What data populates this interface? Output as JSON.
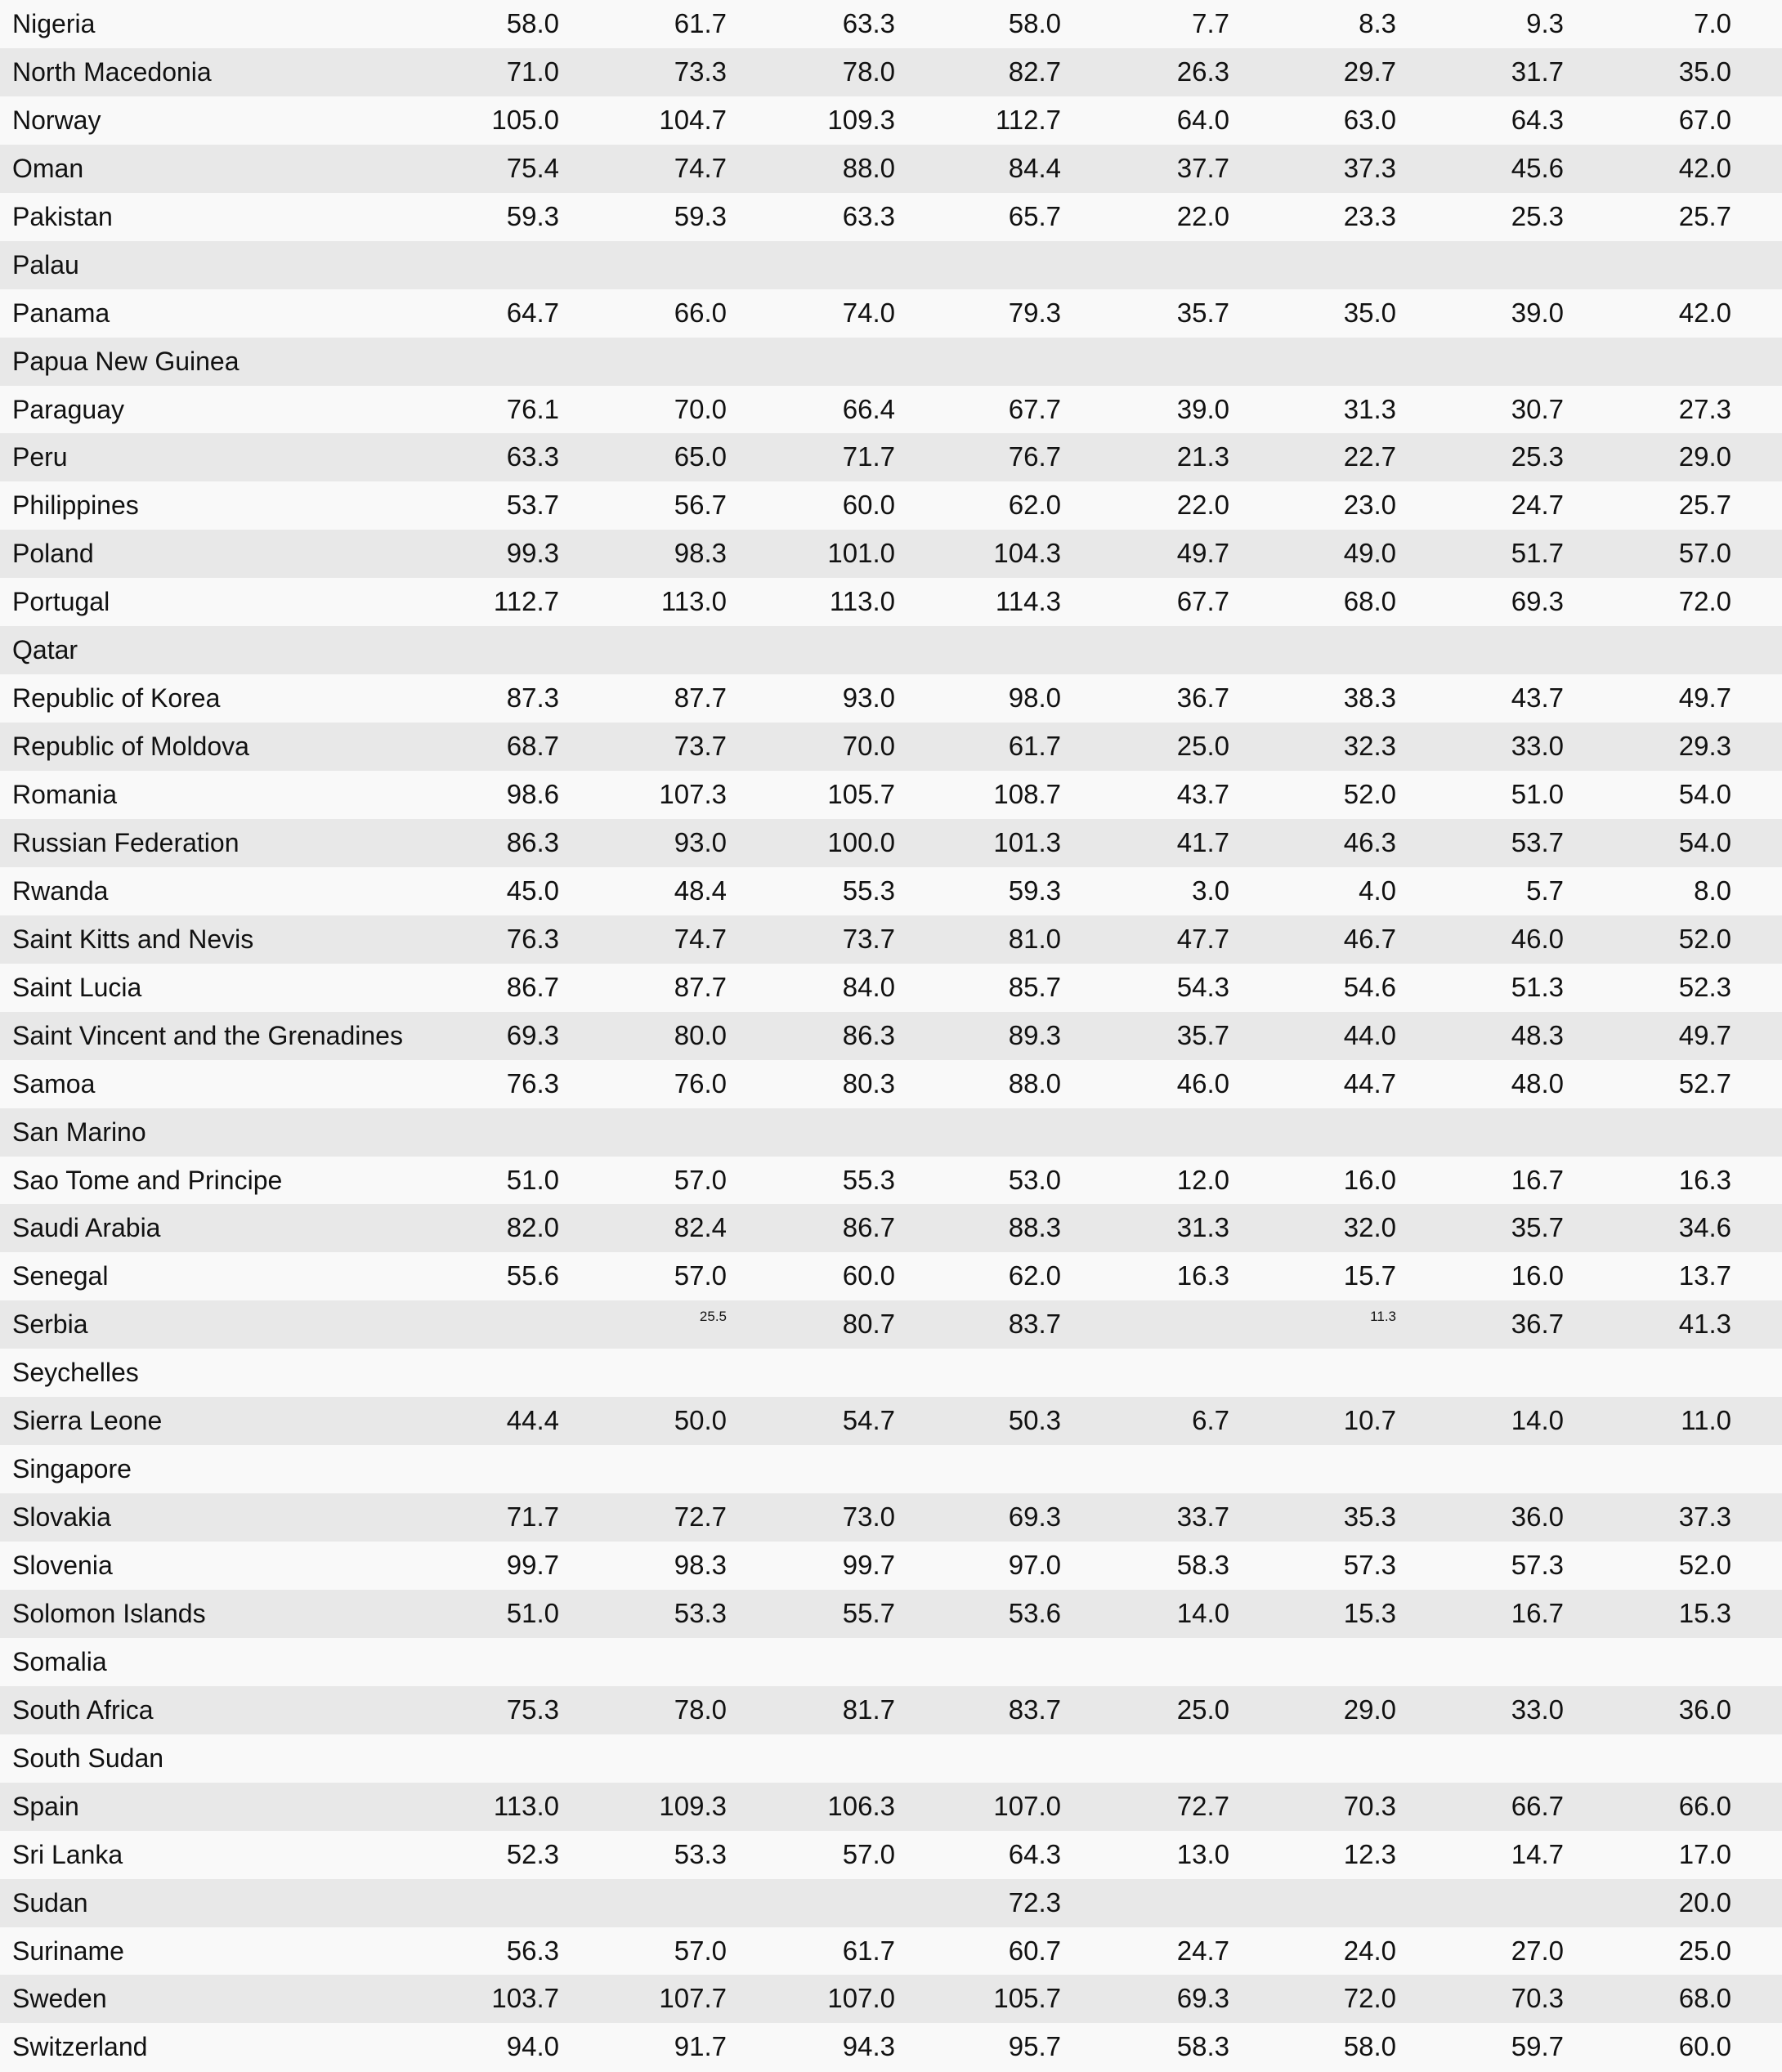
{
  "rows": [
    {
      "country": "Nigeria",
      "values": [
        "58.0",
        "61.7",
        "63.3",
        "58.0",
        "7.7",
        "8.3",
        "9.3",
        "7.0"
      ]
    },
    {
      "country": "North Macedonia",
      "values": [
        "71.0",
        "73.3",
        "78.0",
        "82.7",
        "26.3",
        "29.7",
        "31.7",
        "35.0"
      ]
    },
    {
      "country": "Norway",
      "values": [
        "105.0",
        "104.7",
        "109.3",
        "112.7",
        "64.0",
        "63.0",
        "64.3",
        "67.0"
      ]
    },
    {
      "country": "Oman",
      "values": [
        "75.4",
        "74.7",
        "88.0",
        "84.4",
        "37.7",
        "37.3",
        "45.6",
        "42.0"
      ]
    },
    {
      "country": "Pakistan",
      "values": [
        "59.3",
        "59.3",
        "63.3",
        "65.7",
        "22.0",
        "23.3",
        "25.3",
        "25.7"
      ]
    },
    {
      "country": "Palau",
      "values": [
        "",
        "",
        "",
        "",
        "",
        "",
        "",
        ""
      ]
    },
    {
      "country": "Panama",
      "values": [
        "64.7",
        "66.0",
        "74.0",
        "79.3",
        "35.7",
        "35.0",
        "39.0",
        "42.0"
      ]
    },
    {
      "country": "Papua New Guinea",
      "values": [
        "",
        "",
        "",
        "",
        "",
        "",
        "",
        ""
      ]
    },
    {
      "country": "Paraguay",
      "values": [
        "76.1",
        "70.0",
        "66.4",
        "67.7",
        "39.0",
        "31.3",
        "30.7",
        "27.3"
      ]
    },
    {
      "country": "Peru",
      "values": [
        "63.3",
        "65.0",
        "71.7",
        "76.7",
        "21.3",
        "22.7",
        "25.3",
        "29.0"
      ]
    },
    {
      "country": "Philippines",
      "values": [
        "53.7",
        "56.7",
        "60.0",
        "62.0",
        "22.0",
        "23.0",
        "24.7",
        "25.7"
      ]
    },
    {
      "country": "Poland",
      "values": [
        "99.3",
        "98.3",
        "101.0",
        "104.3",
        "49.7",
        "49.0",
        "51.7",
        "57.0"
      ]
    },
    {
      "country": "Portugal",
      "values": [
        "112.7",
        "113.0",
        "113.0",
        "114.3",
        "67.7",
        "68.0",
        "69.3",
        "72.0"
      ]
    },
    {
      "country": "Qatar",
      "values": [
        "",
        "",
        "",
        "",
        "",
        "",
        "",
        ""
      ]
    },
    {
      "country": "Republic of Korea",
      "values": [
        "87.3",
        "87.7",
        "93.0",
        "98.0",
        "36.7",
        "38.3",
        "43.7",
        "49.7"
      ]
    },
    {
      "country": "Republic of Moldova",
      "values": [
        "68.7",
        "73.7",
        "70.0",
        "61.7",
        "25.0",
        "32.3",
        "33.0",
        "29.3"
      ]
    },
    {
      "country": "Romania",
      "values": [
        "98.6",
        "107.3",
        "105.7",
        "108.7",
        "43.7",
        "52.0",
        "51.0",
        "54.0"
      ]
    },
    {
      "country": "Russian Federation",
      "values": [
        "86.3",
        "93.0",
        "100.0",
        "101.3",
        "41.7",
        "46.3",
        "53.7",
        "54.0"
      ]
    },
    {
      "country": "Rwanda",
      "values": [
        "45.0",
        "48.4",
        "55.3",
        "59.3",
        "3.0",
        "4.0",
        "5.7",
        "8.0"
      ]
    },
    {
      "country": "Saint Kitts and Nevis",
      "values": [
        "76.3",
        "74.7",
        "73.7",
        "81.0",
        "47.7",
        "46.7",
        "46.0",
        "52.0"
      ]
    },
    {
      "country": "Saint Lucia",
      "values": [
        "86.7",
        "87.7",
        "84.0",
        "85.7",
        "54.3",
        "54.6",
        "51.3",
        "52.3"
      ]
    },
    {
      "country": "Saint Vincent and the Grenadines",
      "values": [
        "69.3",
        "80.0",
        "86.3",
        "89.3",
        "35.7",
        "44.0",
        "48.3",
        "49.7"
      ]
    },
    {
      "country": "Samoa",
      "values": [
        "76.3",
        "76.0",
        "80.3",
        "88.0",
        "46.0",
        "44.7",
        "48.0",
        "52.7"
      ]
    },
    {
      "country": "San Marino",
      "values": [
        "",
        "",
        "",
        "",
        "",
        "",
        "",
        ""
      ]
    },
    {
      "country": "Sao Tome and Principe",
      "values": [
        "51.0",
        "57.0",
        "55.3",
        "53.0",
        "12.0",
        "16.0",
        "16.7",
        "16.3"
      ]
    },
    {
      "country": "Saudi Arabia",
      "values": [
        "82.0",
        "82.4",
        "86.7",
        "88.3",
        "31.3",
        "32.0",
        "35.7",
        "34.6"
      ]
    },
    {
      "country": "Senegal",
      "values": [
        "55.6",
        "57.0",
        "60.0",
        "62.0",
        "16.3",
        "15.7",
        "16.0",
        "13.7"
      ]
    },
    {
      "country": "Serbia",
      "values": [
        "",
        "25.5",
        "80.7",
        "83.7",
        "",
        "11.3",
        "36.7",
        "41.3"
      ],
      "small": [
        1,
        5
      ]
    },
    {
      "country": "Seychelles",
      "values": [
        "",
        "",
        "",
        "",
        "",
        "",
        "",
        ""
      ]
    },
    {
      "country": "Sierra Leone",
      "values": [
        "44.4",
        "50.0",
        "54.7",
        "50.3",
        "6.7",
        "10.7",
        "14.0",
        "11.0"
      ]
    },
    {
      "country": "Singapore",
      "values": [
        "",
        "",
        "",
        "",
        "",
        "",
        "",
        ""
      ]
    },
    {
      "country": "Slovakia",
      "values": [
        "71.7",
        "72.7",
        "73.0",
        "69.3",
        "33.7",
        "35.3",
        "36.0",
        "37.3"
      ]
    },
    {
      "country": "Slovenia",
      "values": [
        "99.7",
        "98.3",
        "99.7",
        "97.0",
        "58.3",
        "57.3",
        "57.3",
        "52.0"
      ]
    },
    {
      "country": "Solomon Islands",
      "values": [
        "51.0",
        "53.3",
        "55.7",
        "53.6",
        "14.0",
        "15.3",
        "16.7",
        "15.3"
      ]
    },
    {
      "country": "Somalia",
      "values": [
        "",
        "",
        "",
        "",
        "",
        "",
        "",
        ""
      ]
    },
    {
      "country": "South Africa",
      "values": [
        "75.3",
        "78.0",
        "81.7",
        "83.7",
        "25.0",
        "29.0",
        "33.0",
        "36.0"
      ]
    },
    {
      "country": "South Sudan",
      "values": [
        "",
        "",
        "",
        "",
        "",
        "",
        "",
        ""
      ]
    },
    {
      "country": "Spain",
      "values": [
        "113.0",
        "109.3",
        "106.3",
        "107.0",
        "72.7",
        "70.3",
        "66.7",
        "66.0"
      ]
    },
    {
      "country": "Sri Lanka",
      "values": [
        "52.3",
        "53.3",
        "57.0",
        "64.3",
        "13.0",
        "12.3",
        "14.7",
        "17.0"
      ]
    },
    {
      "country": "Sudan",
      "values": [
        "",
        "",
        "",
        "72.3",
        "",
        "",
        "",
        "20.0"
      ]
    },
    {
      "country": "Suriname",
      "values": [
        "56.3",
        "57.0",
        "61.7",
        "60.7",
        "24.7",
        "24.0",
        "27.0",
        "25.0"
      ]
    },
    {
      "country": "Sweden",
      "values": [
        "103.7",
        "107.7",
        "107.0",
        "105.7",
        "69.3",
        "72.0",
        "70.3",
        "68.0"
      ]
    },
    {
      "country": "Switzerland",
      "values": [
        "94.0",
        "91.7",
        "94.3",
        "95.7",
        "58.3",
        "58.0",
        "59.7",
        "60.0"
      ]
    }
  ],
  "colors": {
    "row_light": "#f9f9f9",
    "row_stripe": "#e8e8e8",
    "text": "#111111"
  }
}
